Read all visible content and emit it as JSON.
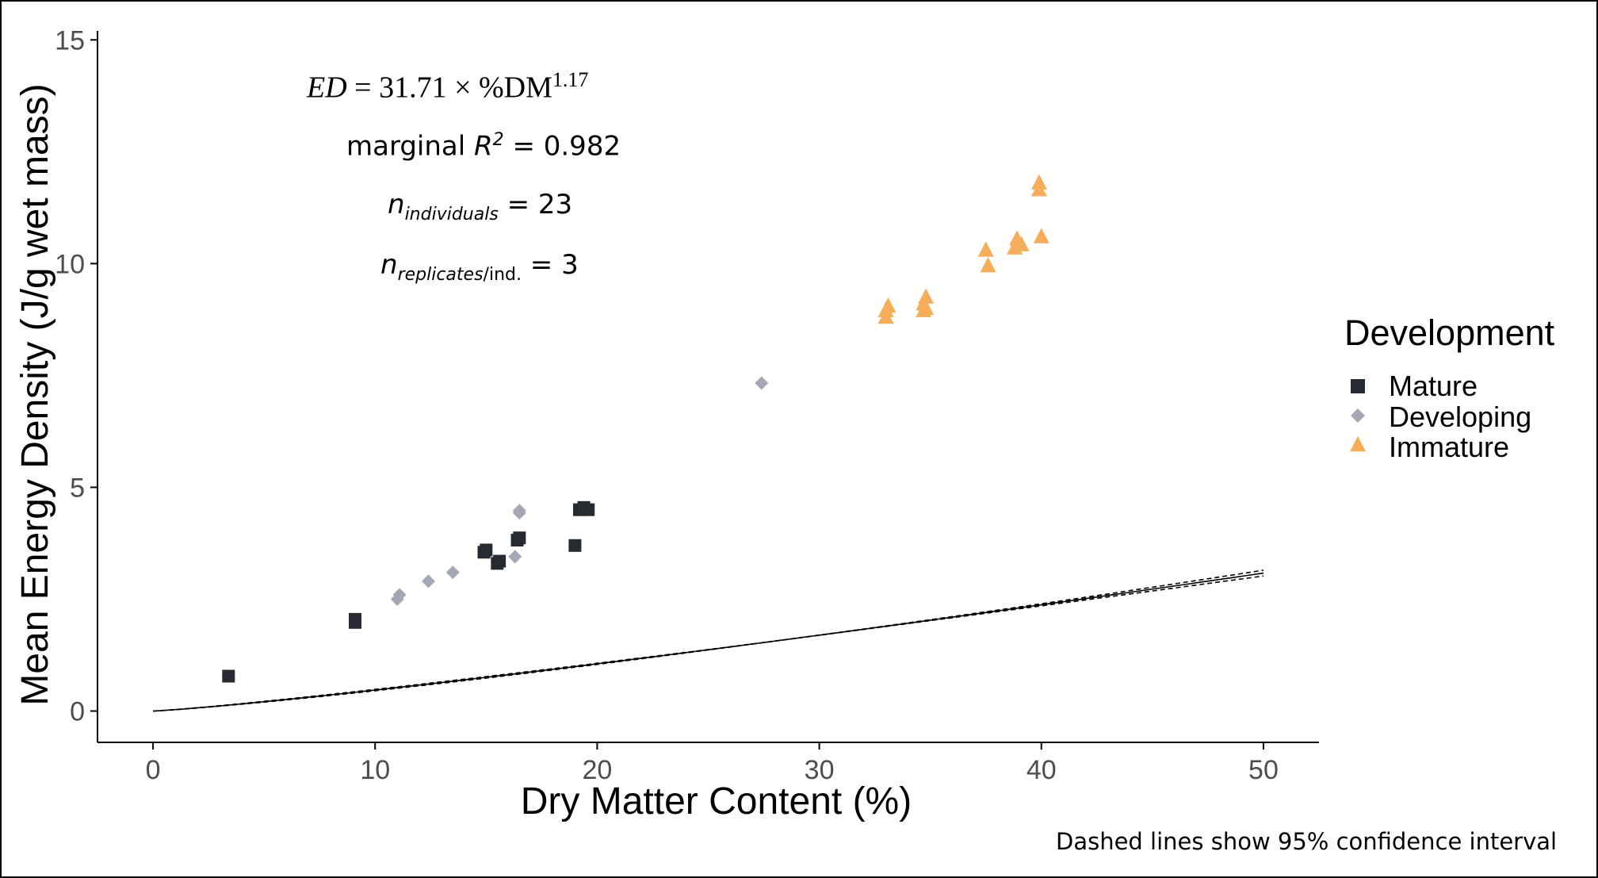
{
  "chart_data": {
    "type": "scatter",
    "xlabel": "Dry Matter Content (%)",
    "ylabel": "Mean Energy Density (J/g wet mass)",
    "xlim": [
      -2.5,
      52.5
    ],
    "ylim": [
      -0.7,
      15.2
    ],
    "x_ticks": [
      "0",
      "10",
      "20",
      "30",
      "40",
      "50"
    ],
    "y_ticks": [
      "0",
      "5",
      "10",
      "15"
    ],
    "grid": false,
    "legend": {
      "title": "Development",
      "placement": "right",
      "entries": [
        "Mature",
        "Developing",
        "Immature"
      ]
    },
    "fit": {
      "equation_lhs": "ED",
      "equation_rhs": "= 31.71 × %DM",
      "exponent": "1.17",
      "coefficient": 31.71,
      "power": 1.17,
      "ci_style": "dashed"
    },
    "annotations": {
      "r2_prefix": "marginal ",
      "r2_symbol": "R",
      "r2_sup": "2",
      "r2_value": " = 0.982",
      "n_ind_symbol": "n",
      "n_ind_sub": "individuals",
      "n_ind_value": " = 23",
      "n_rep_symbol": "n",
      "n_rep_sub": "replicates",
      "n_rep_sub2": "/ind.",
      "n_rep_value": " = 3"
    },
    "caption": "Dashed lines show 95% confidence interval",
    "series": [
      {
        "name": "Mature",
        "marker": "square",
        "color": "#262a31",
        "points": [
          [
            3.4,
            0.78
          ],
          [
            9.1,
            1.98
          ],
          [
            9.1,
            2.05
          ],
          [
            14.9,
            3.55
          ],
          [
            15.0,
            3.6
          ],
          [
            15.5,
            3.3
          ],
          [
            15.6,
            3.35
          ],
          [
            16.4,
            3.82
          ],
          [
            16.5,
            3.87
          ],
          [
            19.0,
            3.7
          ],
          [
            19.2,
            4.5
          ],
          [
            19.4,
            4.55
          ],
          [
            19.6,
            4.5
          ]
        ]
      },
      {
        "name": "Developing",
        "marker": "diamond",
        "color": "#a4a8b6",
        "points": [
          [
            11.0,
            2.5
          ],
          [
            11.1,
            2.6
          ],
          [
            12.4,
            2.9
          ],
          [
            13.5,
            3.1
          ],
          [
            16.3,
            3.45
          ],
          [
            16.5,
            4.43
          ],
          [
            16.5,
            4.48
          ],
          [
            27.4,
            7.33
          ]
        ]
      },
      {
        "name": "Immature",
        "marker": "triangle",
        "color": "#f6ad5a",
        "points": [
          [
            33.0,
            8.8
          ],
          [
            33.0,
            8.95
          ],
          [
            33.1,
            9.05
          ],
          [
            34.7,
            8.95
          ],
          [
            34.7,
            9.1
          ],
          [
            34.8,
            9.25
          ],
          [
            34.8,
            9.0
          ],
          [
            37.5,
            10.3
          ],
          [
            37.6,
            9.95
          ],
          [
            38.8,
            10.35
          ],
          [
            38.9,
            10.55
          ],
          [
            39.1,
            10.42
          ],
          [
            39.9,
            11.65
          ],
          [
            39.9,
            11.8
          ],
          [
            40.0,
            10.6
          ]
        ]
      }
    ],
    "colors": {
      "axis": "#000000",
      "tick_label": "#4d4d4d",
      "fit_line": "#000000"
    }
  }
}
